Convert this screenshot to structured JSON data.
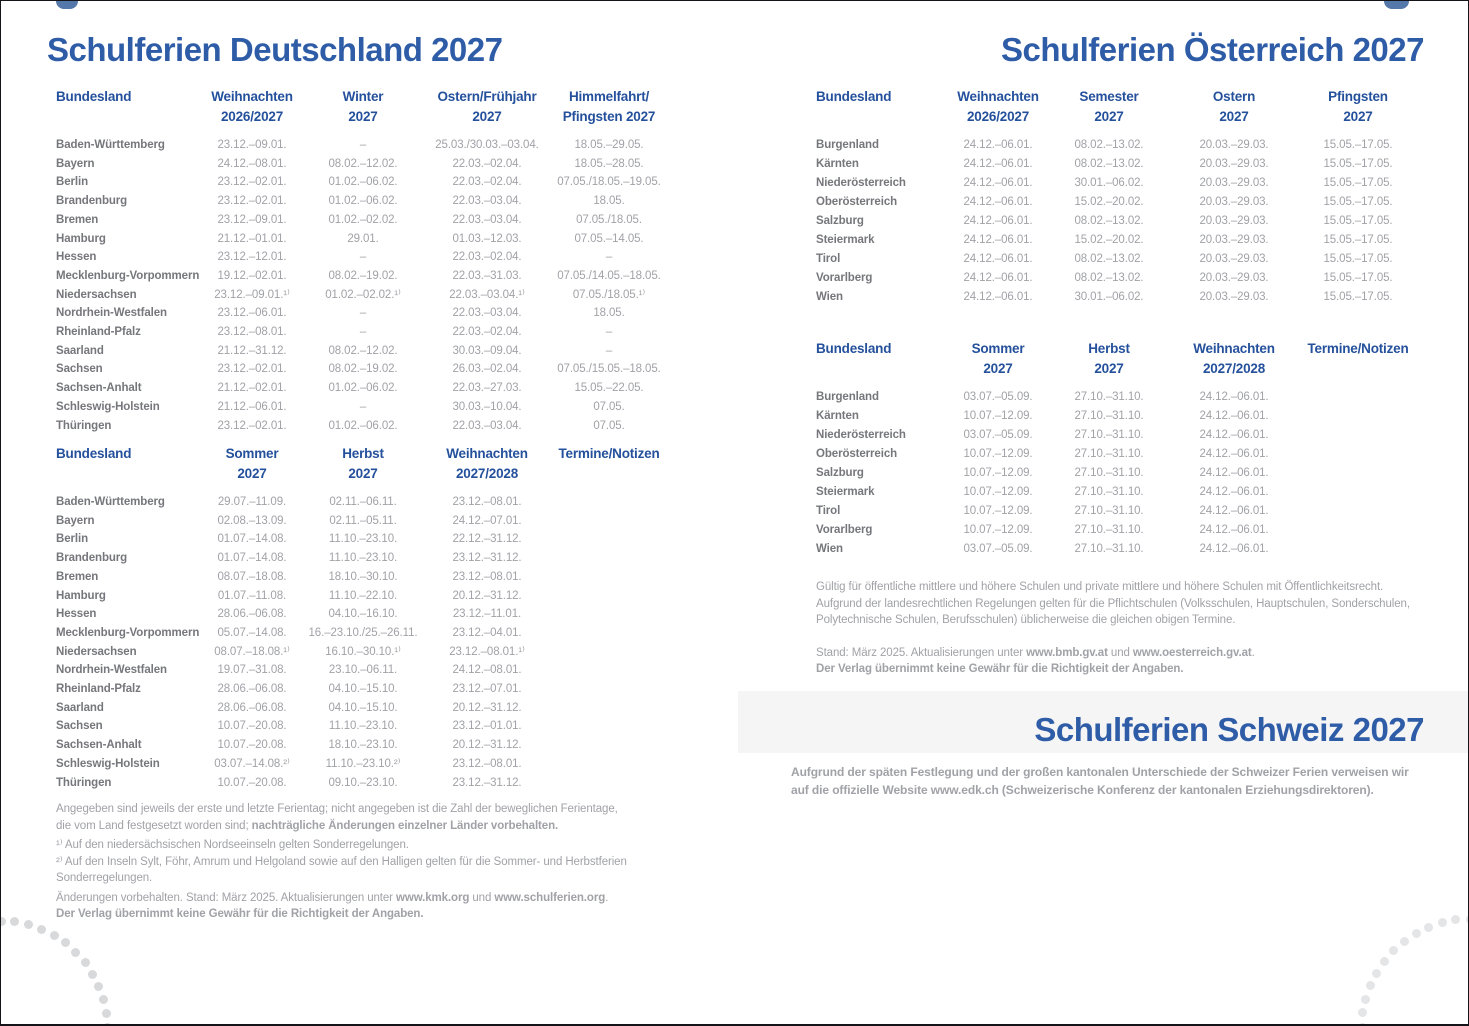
{
  "colors": {
    "title_blue": "#2E5CA7",
    "header_blue": "#25519C",
    "label_gray": "#76777C",
    "value_gray": "#A1A2A7",
    "dot_left": "#D8D9DB",
    "dot_right": "#E4E5E7"
  },
  "germany": {
    "title": "Schulferien Deutschland 2027",
    "table1": {
      "col_headers": [
        {
          "l1": "Bundesland",
          "l2": ""
        },
        {
          "l1": "Weihnachten",
          "l2": "2026/2027"
        },
        {
          "l1": "Winter",
          "l2": "2027"
        },
        {
          "l1": "Ostern/Frühjahr",
          "l2": "2027"
        },
        {
          "l1": "Himmelfahrt/",
          "l2": "Pfingsten 2027"
        }
      ],
      "rows": [
        [
          "Baden-Württemberg",
          "23.12.–09.01.",
          "–",
          "25.03./30.03.–03.04.",
          "18.05.–29.05."
        ],
        [
          "Bayern",
          "24.12.–08.01.",
          "08.02.–12.02.",
          "22.03.–02.04.",
          "18.05.–28.05."
        ],
        [
          "Berlin",
          "23.12.–02.01.",
          "01.02.–06.02.",
          "22.03.–02.04.",
          "07.05./18.05.–19.05."
        ],
        [
          "Brandenburg",
          "23.12.–02.01.",
          "01.02.–06.02.",
          "22.03.–03.04.",
          "18.05."
        ],
        [
          "Bremen",
          "23.12.–09.01.",
          "01.02.–02.02.",
          "22.03.–03.04.",
          "07.05./18.05."
        ],
        [
          "Hamburg",
          "21.12.–01.01.",
          "29.01.",
          "01.03.–12.03.",
          "07.05.–14.05."
        ],
        [
          "Hessen",
          "23.12.–12.01.",
          "–",
          "22.03.–02.04.",
          "–"
        ],
        [
          "Mecklenburg-Vorpommern",
          "19.12.–02.01.",
          "08.02.–19.02.",
          "22.03.–31.03.",
          "07.05./14.05.–18.05."
        ],
        [
          "Niedersachsen",
          "23.12.–09.01.¹⁾",
          "01.02.–02.02.¹⁾",
          "22.03.–03.04.¹⁾",
          "07.05./18.05.¹⁾"
        ],
        [
          "Nordrhein-Westfalen",
          "23.12.–06.01.",
          "–",
          "22.03.–03.04.",
          "18.05."
        ],
        [
          "Rheinland-Pfalz",
          "23.12.–08.01.",
          "–",
          "22.03.–02.04.",
          "–"
        ],
        [
          "Saarland",
          "21.12.–31.12.",
          "08.02.–12.02.",
          "30.03.–09.04.",
          "–"
        ],
        [
          "Sachsen",
          "23.12.–02.01.",
          "08.02.–19.02.",
          "26.03.–02.04.",
          "07.05./15.05.–18.05."
        ],
        [
          "Sachsen-Anhalt",
          "21.12.–02.01.",
          "01.02.–06.02.",
          "22.03.–27.03.",
          "15.05.–22.05."
        ],
        [
          "Schleswig-Holstein",
          "21.12.–06.01.",
          "–",
          "30.03.–10.04.",
          "07.05."
        ],
        [
          "Thüringen",
          "23.12.–02.01.",
          "01.02.–06.02.",
          "22.03.–03.04.",
          "07.05."
        ]
      ]
    },
    "table2": {
      "col_headers": [
        {
          "l1": "Bundesland",
          "l2": ""
        },
        {
          "l1": "Sommer",
          "l2": "2027"
        },
        {
          "l1": "Herbst",
          "l2": "2027"
        },
        {
          "l1": "Weihnachten",
          "l2": "2027/2028"
        },
        {
          "l1": "Termine/Notizen",
          "l2": ""
        }
      ],
      "rows": [
        [
          "Baden-Württemberg",
          "29.07.–11.09.",
          "02.11.–06.11.",
          "23.12.–08.01."
        ],
        [
          "Bayern",
          "02.08.–13.09.",
          "02.11.–05.11.",
          "24.12.–07.01."
        ],
        [
          "Berlin",
          "01.07.–14.08.",
          "11.10.–23.10.",
          "22.12.–31.12."
        ],
        [
          "Brandenburg",
          "01.07.–14.08.",
          "11.10.–23.10.",
          "23.12.–31.12."
        ],
        [
          "Bremen",
          "08.07.–18.08.",
          "18.10.–30.10.",
          "23.12.–08.01."
        ],
        [
          "Hamburg",
          "01.07.–11.08.",
          "11.10.–22.10.",
          "20.12.–31.12."
        ],
        [
          "Hessen",
          "28.06.–06.08.",
          "04.10.–16.10.",
          "23.12.–11.01."
        ],
        [
          "Mecklenburg-Vorpommern",
          "05.07.–14.08.",
          "16.–23.10./25.–26.11.",
          "23.12.–04.01."
        ],
        [
          "Niedersachsen",
          "08.07.–18.08.¹⁾",
          "16.10.–30.10.¹⁾",
          "23.12.–08.01.¹⁾"
        ],
        [
          "Nordrhein-Westfalen",
          "19.07.–31.08.",
          "23.10.–06.11.",
          "24.12.–08.01."
        ],
        [
          "Rheinland-Pfalz",
          "28.06.–06.08.",
          "04.10.–15.10.",
          "23.12.–07.01."
        ],
        [
          "Saarland",
          "28.06.–06.08.",
          "04.10.–15.10.",
          "20.12.–31.12."
        ],
        [
          "Sachsen",
          "10.07.–20.08.",
          "11.10.–23.10.",
          "23.12.–01.01."
        ],
        [
          "Sachsen-Anhalt",
          "10.07.–20.08.",
          "18.10.–23.10.",
          "20.12.–31.12."
        ],
        [
          "Schleswig-Holstein",
          "03.07.–14.08.²⁾",
          "11.10.–23.10.²⁾",
          "23.12.–08.01."
        ],
        [
          "Thüringen",
          "10.07.–20.08.",
          "09.10.–23.10.",
          "23.12.–31.12."
        ]
      ]
    },
    "notes": [
      {
        "segs": [
          {
            "t": "Angegeben sind jeweils der erste und letzte Ferientag; nicht angegeben ist die Zahl der beweglichen Ferientage,"
          }
        ]
      },
      {
        "segs": [
          {
            "t": "die vom Land festgesetzt worden sind; "
          },
          {
            "t": "nachträgliche Änderungen einzelner Länder vorbehalten.",
            "b": true
          }
        ]
      },
      {
        "cls": "mt3",
        "segs": [
          {
            "t": "¹⁾ Auf den niedersächsischen Nordseeinseln gelten Sonderregelungen."
          }
        ]
      },
      {
        "segs": [
          {
            "t": "²⁾ Auf den Inseln Sylt, Föhr, Amrum und Helgoland sowie auf den Halligen gelten für die Sommer- und Herbstferien Sonderregelungen."
          }
        ]
      },
      {
        "cls": "mt3",
        "segs": [
          {
            "t": "Änderungen vorbehalten. Stand: März 2025. Aktualisierungen unter "
          },
          {
            "t": "www.kmk.org",
            "b": true
          },
          {
            "t": " und "
          },
          {
            "t": "www.schulferien.org",
            "b": true
          },
          {
            "t": "."
          }
        ]
      },
      {
        "segs": [
          {
            "t": "Der Verlag übernimmt keine Gewähr für die Richtigkeit der Angaben.",
            "b": true
          }
        ]
      }
    ]
  },
  "austria": {
    "title": "Schulferien Österreich 2027",
    "table1": {
      "col_headers": [
        {
          "l1": "Bundesland",
          "l2": ""
        },
        {
          "l1": "Weihnachten",
          "l2": "2026/2027"
        },
        {
          "l1": "Semester",
          "l2": "2027"
        },
        {
          "l1": "Ostern",
          "l2": "2027"
        },
        {
          "l1": "Pfingsten",
          "l2": "2027"
        }
      ],
      "rows": [
        [
          "Burgenland",
          "24.12.–06.01.",
          "08.02.–13.02.",
          "20.03.–29.03.",
          "15.05.–17.05."
        ],
        [
          "Kärnten",
          "24.12.–06.01.",
          "08.02.–13.02.",
          "20.03.–29.03.",
          "15.05.–17.05."
        ],
        [
          "Niederösterreich",
          "24.12.–06.01.",
          "30.01.–06.02.",
          "20.03.–29.03.",
          "15.05.–17.05."
        ],
        [
          "Oberösterreich",
          "24.12.–06.01.",
          "15.02.–20.02.",
          "20.03.–29.03.",
          "15.05.–17.05."
        ],
        [
          "Salzburg",
          "24.12.–06.01.",
          "08.02.–13.02.",
          "20.03.–29.03.",
          "15.05.–17.05."
        ],
        [
          "Steiermark",
          "24.12.–06.01.",
          "15.02.–20.02.",
          "20.03.–29.03.",
          "15.05.–17.05."
        ],
        [
          "Tirol",
          "24.12.–06.01.",
          "08.02.–13.02.",
          "20.03.–29.03.",
          "15.05.–17.05."
        ],
        [
          "Vorarlberg",
          "24.12.–06.01.",
          "08.02.–13.02.",
          "20.03.–29.03.",
          "15.05.–17.05."
        ],
        [
          "Wien",
          "24.12.–06.01.",
          "30.01.–06.02.",
          "20.03.–29.03.",
          "15.05.–17.05."
        ]
      ]
    },
    "table2": {
      "col_headers": [
        {
          "l1": "Bundesland",
          "l2": ""
        },
        {
          "l1": "Sommer",
          "l2": "2027"
        },
        {
          "l1": "Herbst",
          "l2": "2027"
        },
        {
          "l1": "Weihnachten",
          "l2": "2027/2028"
        },
        {
          "l1": "Termine/Notizen",
          "l2": ""
        }
      ],
      "rows": [
        [
          "Burgenland",
          "03.07.–05.09.",
          "27.10.–31.10.",
          "24.12.–06.01."
        ],
        [
          "Kärnten",
          "10.07.–12.09.",
          "27.10.–31.10.",
          "24.12.–06.01."
        ],
        [
          "Niederösterreich",
          "03.07.–05.09.",
          "27.10.–31.10.",
          "24.12.–06.01."
        ],
        [
          "Oberösterreich",
          "10.07.–12.09.",
          "27.10.–31.10.",
          "24.12.–06.01."
        ],
        [
          "Salzburg",
          "10.07.–12.09.",
          "27.10.–31.10.",
          "24.12.–06.01."
        ],
        [
          "Steiermark",
          "10.07.–12.09.",
          "27.10.–31.10.",
          "24.12.–06.01."
        ],
        [
          "Tirol",
          "10.07.–12.09.",
          "27.10.–31.10.",
          "24.12.–06.01."
        ],
        [
          "Vorarlberg",
          "10.07.–12.09.",
          "27.10.–31.10.",
          "24.12.–06.01."
        ],
        [
          "Wien",
          "03.07.–05.09.",
          "27.10.–31.10.",
          "24.12.–06.01."
        ]
      ]
    },
    "notes": [
      {
        "segs": [
          {
            "t": "Gültig für öffentliche mittlere und höhere Schulen und private mittlere und höhere Schulen mit Öffentlichkeitsrecht."
          }
        ]
      },
      {
        "segs": [
          {
            "t": "Aufgrund der landesrechtlichen Regelungen gelten für die Pflichtschulen (Volksschulen, Hauptschulen, Sonderschulen,"
          }
        ]
      },
      {
        "segs": [
          {
            "t": "Polytechnische Schulen, Berufsschulen) üblicherweise die gleichen obigen Termine."
          }
        ]
      },
      {
        "cls": "mt16",
        "segs": [
          {
            "t": "Stand: März 2025. Aktualisierungen unter "
          },
          {
            "t": "www.bmb.gv.at",
            "b": true
          },
          {
            "t": " und "
          },
          {
            "t": "www.oesterreich.gv.at",
            "b": true
          },
          {
            "t": "."
          }
        ]
      },
      {
        "segs": [
          {
            "t": "Der Verlag übernimmt keine Gewähr für die Richtigkeit der Angaben.",
            "b": true
          }
        ]
      }
    ]
  },
  "switzerland": {
    "title": "Schulferien Schweiz 2027",
    "notes": [
      {
        "segs": [
          {
            "t": "Aufgrund der späten Festlegung und der großen kantonalen Unterschiede der Schweizer Ferien verweisen wir",
            "b": true
          }
        ]
      },
      {
        "segs": [
          {
            "t": "auf die offizielle Website www.edk.ch (Schweizerische Konferenz der kantonalen Erziehungsdirektoren).",
            "b": true
          }
        ]
      }
    ]
  }
}
